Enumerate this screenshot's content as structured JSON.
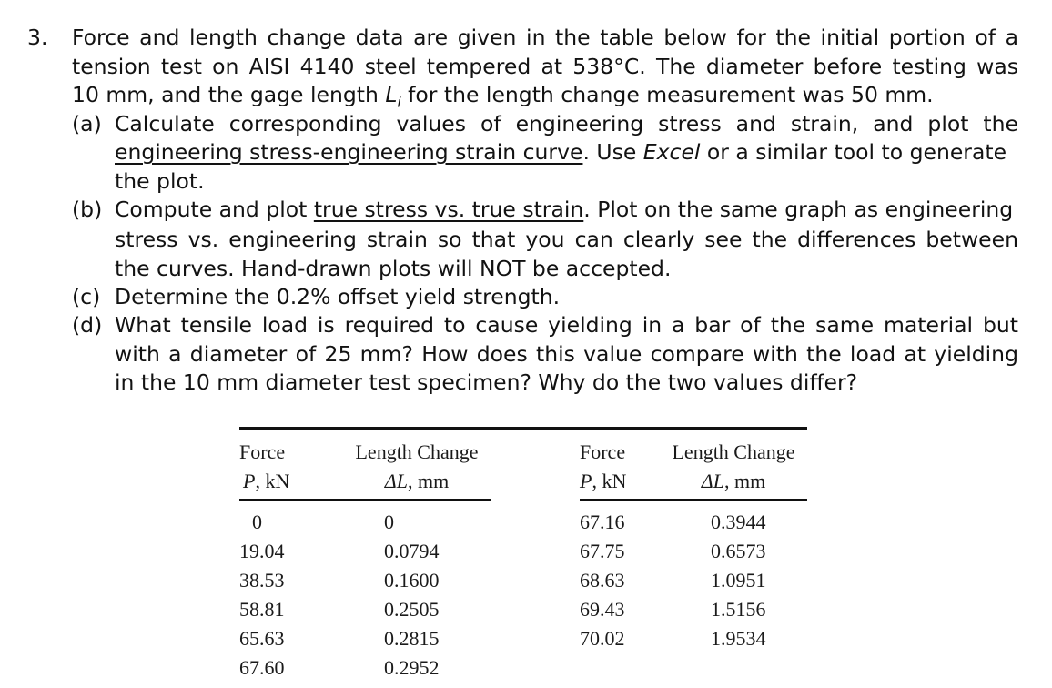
{
  "problem": {
    "number": "3.",
    "intro": [
      "Force and length change data are given in the table below for the initial portion of a",
      "tension test on AISI 4140 steel tempered at 538°C. The diameter before testing was",
      "10 mm, and the gage length L",
      "i",
      " for the length change measurement was 50 mm."
    ],
    "part_a": {
      "label": "(a)",
      "line1": "Calculate corresponding values of engineering stress and strain, and plot the",
      "line2_underlined": "engineering stress-engineering strain curve",
      "line2_rest_before_italic": ". Use ",
      "line2_italic": "Excel",
      "line2_rest": " or a similar tool to generate",
      "line3": "the plot."
    },
    "part_b": {
      "label": "(b)",
      "line1_before": "Compute and plot ",
      "line1_underlined": "true stress vs. true strain",
      "line1_after": ". Plot on the same graph as engineering",
      "line2": "stress vs. engineering strain so that you can clearly see the differences between",
      "line3": "the curves. Hand-drawn plots will NOT be accepted."
    },
    "part_c": {
      "label": "(c)",
      "line1": "Determine the 0.2% offset yield strength."
    },
    "part_d": {
      "label": "(d)",
      "line1": "What tensile load is required to cause yielding in a bar of the same material but",
      "line2": "with a diameter of 25 mm? How does this value compare with the load at yielding",
      "line3": "in the 10 mm diameter test specimen? Why do the two values differ?"
    }
  },
  "table": {
    "headers": {
      "force_line1": "Force",
      "force_line2_var": "P",
      "force_line2_unit": ", kN",
      "length_line1": "Length Change",
      "length_line2_var": "ΔL",
      "length_line2_unit": ", mm"
    },
    "left_rows": [
      {
        "force": "0",
        "length": "0"
      },
      {
        "force": "19.04",
        "length": "0.0794"
      },
      {
        "force": "38.53",
        "length": "0.1600"
      },
      {
        "force": "58.81",
        "length": "0.2505"
      },
      {
        "force": "65.63",
        "length": "0.2815"
      },
      {
        "force": "67.60",
        "length": "0.2952"
      }
    ],
    "right_rows": [
      {
        "force": "67.16",
        "length": "0.3944"
      },
      {
        "force": "67.75",
        "length": "0.6573"
      },
      {
        "force": "68.63",
        "length": "1.0951"
      },
      {
        "force": "69.43",
        "length": "1.5156"
      },
      {
        "force": "70.02",
        "length": "1.9534"
      }
    ]
  }
}
